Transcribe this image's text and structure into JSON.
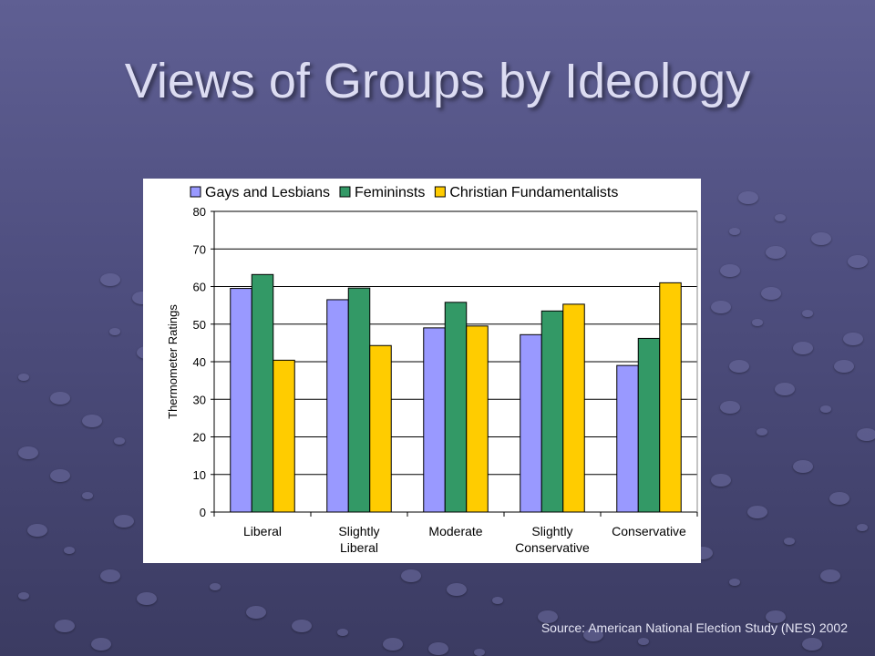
{
  "slide": {
    "title": "Views of Groups by Ideology",
    "source": "Source: American National Election Study (NES) 2002"
  },
  "chart_data": {
    "type": "bar",
    "title": "",
    "xlabel": "",
    "ylabel": "Thermometer Ratings",
    "ylim": [
      0,
      80
    ],
    "yticks": [
      0,
      10,
      20,
      30,
      40,
      50,
      60,
      70,
      80
    ],
    "grid": true,
    "legend": "top",
    "categories": [
      "Liberal",
      "Slightly Liberal",
      "Moderate",
      "Slightly Conservative",
      "Conservative"
    ],
    "category_lines": [
      [
        "Liberal"
      ],
      [
        "Slightly",
        "Liberal"
      ],
      [
        "Moderate"
      ],
      [
        "Slightly",
        "Conservative"
      ],
      [
        "Conservative"
      ]
    ],
    "series": [
      {
        "name": "Gays and Lesbians",
        "color": "#9999ff",
        "values": [
          59.5,
          56.5,
          49,
          47.2,
          39
        ]
      },
      {
        "name": "Femininsts",
        "color": "#339966",
        "values": [
          63.2,
          59.6,
          55.8,
          53.5,
          46.2
        ]
      },
      {
        "name": "Christian Fundamentalists",
        "color": "#ffcc00",
        "values": [
          40.4,
          44.3,
          49.5,
          55.3,
          61
        ]
      }
    ]
  }
}
